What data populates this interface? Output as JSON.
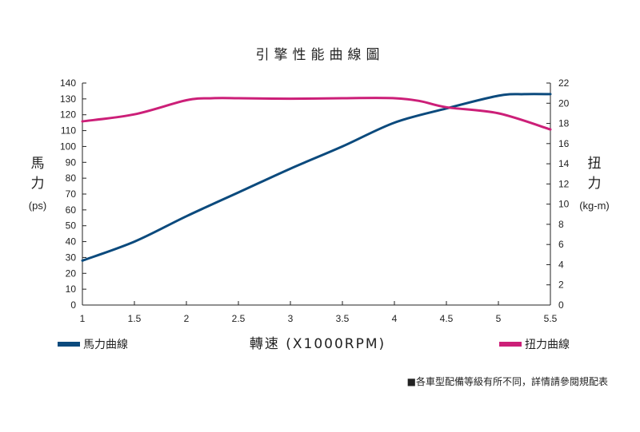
{
  "chart_data": {
    "type": "line",
    "title": "引擎性能曲線圖",
    "xlabel": "轉速 (X1000RPM)",
    "ylabel_left": {
      "line1": "馬",
      "line2": "力",
      "unit": "(ps)"
    },
    "ylabel_right": {
      "line1": "扭",
      "line2": "力",
      "unit": "(kg-m)"
    },
    "xlim": [
      1,
      5.5
    ],
    "ylim_left": [
      0,
      140
    ],
    "ylim_right": [
      0,
      22
    ],
    "x_ticks": [
      "1",
      "1.5",
      "2",
      "2.5",
      "3",
      "3.5",
      "4",
      "4.5",
      "5",
      "5.5"
    ],
    "y_ticks_left": [
      "0",
      "10",
      "20",
      "30",
      "40",
      "50",
      "60",
      "70",
      "80",
      "90",
      "100",
      "110",
      "120",
      "130",
      "140"
    ],
    "y_ticks_right": [
      "0",
      "2",
      "4",
      "6",
      "8",
      "10",
      "12",
      "14",
      "16",
      "18",
      "20",
      "22"
    ],
    "series": [
      {
        "name": "馬力曲線",
        "axis": "left",
        "color": "#0b4a7d",
        "x": [
          1,
          1.5,
          2,
          2.5,
          3,
          3.5,
          4,
          4.5,
          5,
          5.25,
          5.5
        ],
        "y": [
          28,
          40,
          56,
          71,
          86,
          100,
          115,
          124,
          132,
          133,
          133
        ]
      },
      {
        "name": "扭力曲線",
        "axis": "right",
        "color": "#cc1f78",
        "x": [
          1,
          1.5,
          2,
          2.25,
          2.5,
          3,
          3.5,
          4,
          4.25,
          4.5,
          5,
          5.5
        ],
        "y": [
          18.2,
          18.9,
          20.3,
          20.5,
          20.5,
          20.45,
          20.5,
          20.5,
          20.2,
          19.6,
          19.0,
          17.4
        ]
      }
    ],
    "grid": false,
    "legend": "bottom"
  },
  "note": "■各車型配備等級有所不同，詳情請參閱規配表"
}
